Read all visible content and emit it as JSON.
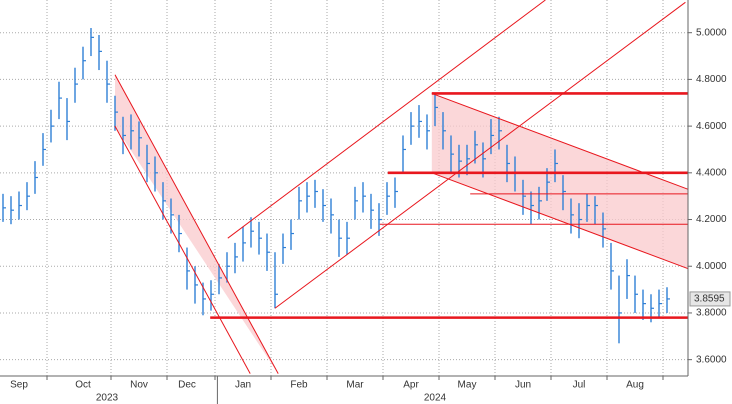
{
  "chart_data": {
    "type": "ohlc",
    "color": "#2f7fd6",
    "line_color": "#e8171e",
    "band_color": "#f9c9cc",
    "last_value_label": "3.8595",
    "years": [
      "2023",
      "2024"
    ],
    "categories": [
      null,
      null,
      "Sep",
      null,
      null,
      null,
      null,
      null,
      null,
      null,
      "Oct",
      null,
      null,
      null,
      null,
      null,
      null,
      "Nov",
      null,
      null,
      null,
      null,
      null,
      "Dec",
      null,
      null,
      null,
      null,
      null,
      null,
      "Jan",
      null,
      null,
      null,
      null,
      null,
      null,
      "Feb",
      null,
      null,
      null,
      null,
      null,
      null,
      "Mar",
      null,
      null,
      null,
      null,
      null,
      null,
      "Apr",
      null,
      null,
      null,
      null,
      null,
      null,
      "May",
      null,
      null,
      null,
      null,
      null,
      null,
      "Jun",
      null,
      null,
      null,
      null,
      null,
      null,
      "Jul",
      null,
      null,
      null,
      null,
      null,
      null,
      "Aug",
      null,
      null,
      null,
      null
    ],
    "close": [
      4.25,
      4.24,
      4.26,
      4.3,
      4.38,
      4.5,
      4.6,
      4.72,
      4.62,
      4.78,
      4.88,
      4.98,
      4.92,
      4.78,
      4.66,
      4.56,
      4.58,
      4.55,
      4.44,
      4.4,
      4.28,
      4.22,
      4.14,
      3.98,
      3.92,
      3.86,
      3.88,
      3.95,
      4.0,
      4.04,
      4.1,
      4.15,
      4.12,
      4.06,
      3.88,
      4.08,
      4.14,
      4.28,
      4.3,
      4.32,
      4.26,
      4.22,
      4.12,
      4.12,
      4.28,
      4.3,
      4.24,
      4.2,
      4.3,
      4.32,
      4.5,
      4.6,
      4.62,
      4.58,
      4.68,
      4.58,
      4.48,
      4.45,
      4.46,
      4.52,
      4.46,
      4.56,
      4.58,
      4.44,
      4.4,
      4.3,
      4.26,
      4.28,
      4.36,
      4.44,
      4.32,
      4.22,
      4.2,
      4.26,
      4.26,
      4.16,
      3.98,
      3.8,
      3.96,
      3.88,
      3.84,
      3.82,
      3.84,
      3.86
    ],
    "high": [
      4.31,
      4.3,
      4.32,
      4.36,
      4.45,
      4.57,
      4.67,
      4.79,
      4.72,
      4.85,
      4.94,
      5.02,
      4.99,
      4.88,
      4.73,
      4.64,
      4.65,
      4.62,
      4.52,
      4.47,
      4.36,
      4.29,
      4.22,
      4.08,
      4.0,
      3.93,
      3.94,
      4.01,
      4.06,
      4.1,
      4.17,
      4.21,
      4.19,
      4.14,
      4.06,
      4.14,
      4.2,
      4.34,
      4.36,
      4.37,
      4.33,
      4.29,
      4.2,
      4.19,
      4.34,
      4.36,
      4.31,
      4.27,
      4.36,
      4.38,
      4.56,
      4.66,
      4.69,
      4.65,
      4.74,
      4.66,
      4.56,
      4.52,
      4.52,
      4.58,
      4.53,
      4.63,
      4.64,
      4.52,
      4.47,
      4.37,
      4.32,
      4.34,
      4.42,
      4.5,
      4.39,
      4.29,
      4.27,
      4.31,
      4.3,
      4.23,
      4.1,
      3.96,
      4.03,
      3.96,
      3.9,
      3.88,
      3.9,
      3.91
    ],
    "low": [
      4.19,
      4.18,
      4.2,
      4.24,
      4.31,
      4.43,
      4.53,
      4.63,
      4.54,
      4.7,
      4.8,
      4.9,
      4.84,
      4.7,
      4.58,
      4.48,
      4.5,
      4.47,
      4.36,
      4.32,
      4.2,
      4.14,
      4.06,
      3.9,
      3.84,
      3.79,
      3.81,
      3.88,
      3.93,
      3.97,
      4.02,
      4.08,
      4.05,
      3.98,
      3.82,
      4.01,
      4.07,
      4.2,
      4.23,
      4.25,
      4.19,
      4.14,
      4.04,
      4.05,
      4.2,
      4.23,
      4.16,
      4.13,
      4.22,
      4.25,
      4.4,
      4.52,
      4.55,
      4.5,
      4.6,
      4.5,
      4.4,
      4.38,
      4.39,
      4.44,
      4.38,
      4.48,
      4.5,
      4.36,
      4.32,
      4.22,
      4.18,
      4.2,
      4.28,
      4.36,
      4.24,
      4.14,
      4.12,
      4.19,
      4.18,
      4.08,
      3.9,
      3.67,
      3.86,
      3.8,
      3.77,
      3.76,
      3.78,
      3.8
    ],
    "bands": [
      [
        14,
        4.82,
        4.6,
        34.4,
        3.54,
        3.54
      ],
      [
        53.6,
        4.74,
        4.4,
        85.6,
        4.33,
        3.99
      ]
    ],
    "trend_lines": [
      [
        14,
        4.82,
        34.4,
        3.54
      ],
      [
        14,
        4.6,
        30.9,
        3.54
      ],
      [
        28.1,
        4.12,
        67.8,
        5.14
      ],
      [
        34,
        3.82,
        85.3,
        5.13
      ],
      [
        53.6,
        4.74,
        85.6,
        4.33
      ],
      [
        53.6,
        4.4,
        85.6,
        3.99
      ],
      [
        58.4,
        4.31,
        85.6,
        4.31
      ],
      [
        47.1,
        4.18,
        85.6,
        4.18
      ]
    ],
    "thick_lines": [
      [
        25.9,
        3.78,
        85.6,
        3.78
      ],
      [
        53.6,
        4.74,
        85.6,
        4.74
      ],
      [
        48.1,
        4.4,
        85.6,
        4.4
      ]
    ],
    "ylim": [
      3.53,
      5.14
    ],
    "yticks": [
      {
        "value": 3.6,
        "label": "3.6000"
      },
      {
        "value": 3.8,
        "label": "3.8000"
      },
      {
        "value": 4.0,
        "label": "4.0000"
      },
      {
        "value": 4.2,
        "label": "4.2000"
      },
      {
        "value": 4.4,
        "label": "4.4000"
      },
      {
        "value": 4.6,
        "label": "4.6000"
      },
      {
        "value": 4.8,
        "label": "4.8000"
      },
      {
        "value": 5.0,
        "label": "5.0000"
      }
    ],
    "grid": true
  }
}
